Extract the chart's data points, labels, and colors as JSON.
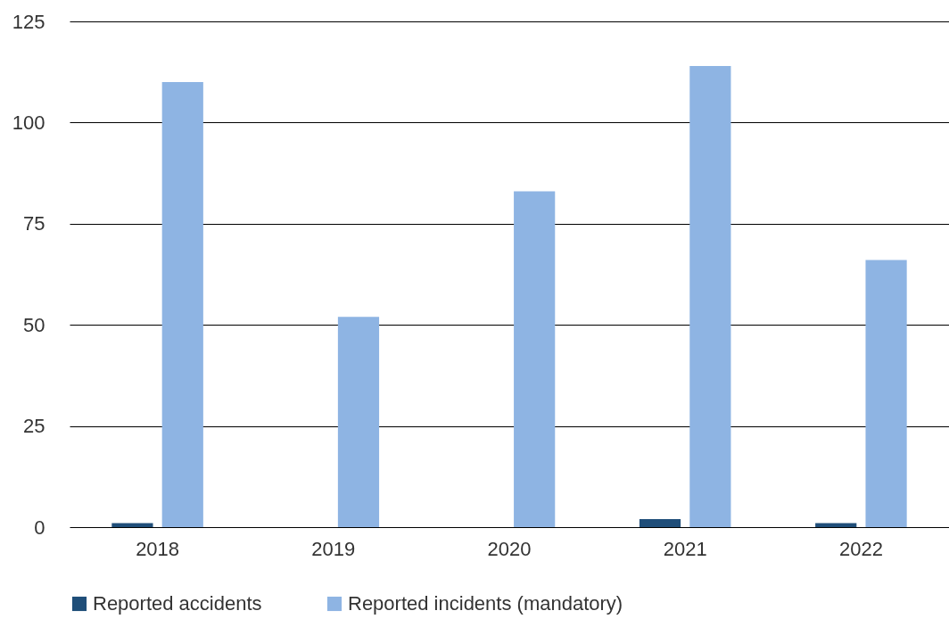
{
  "chart_data": {
    "type": "bar",
    "categories": [
      "2018",
      "2019",
      "2020",
      "2021",
      "2022"
    ],
    "series": [
      {
        "name": "Reported accidents",
        "color": "#1f4e79",
        "values": [
          1,
          0,
          0,
          2,
          1
        ]
      },
      {
        "name": "Reported incidents (mandatory)",
        "color": "#8eb4e3",
        "values": [
          110,
          52,
          83,
          114,
          66
        ]
      }
    ],
    "ylim": [
      0,
      125
    ],
    "yticks": [
      0,
      25,
      50,
      75,
      100,
      125
    ],
    "grid": "y",
    "legend": "bottom"
  }
}
